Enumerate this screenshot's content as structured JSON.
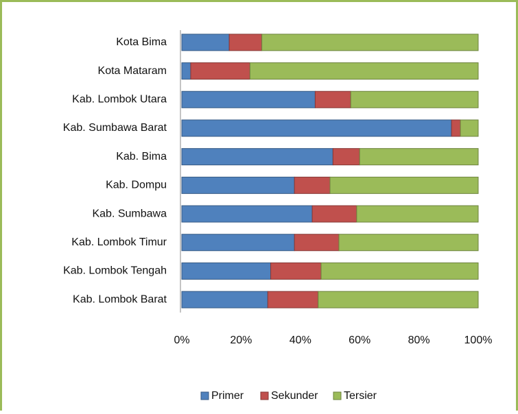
{
  "chart_data": {
    "type": "stacked_barh",
    "categories": [
      "Kota Bima",
      "Kota Mataram",
      "Kab. Lombok Utara",
      "Kab. Sumbawa Barat",
      "Kab. Bima",
      "Kab. Dompu",
      "Kab. Sumbawa",
      "Kab. Lombok Timur",
      "Kab. Lombok Tengah",
      "Kab. Lombok Barat"
    ],
    "series": [
      {
        "name": "Primer",
        "color": "#4f81bd",
        "values": [
          16,
          3,
          45,
          91,
          51,
          38,
          44,
          38,
          30,
          29
        ]
      },
      {
        "name": "Sekunder",
        "color": "#c0504d",
        "values": [
          11,
          20,
          12,
          3,
          9,
          12,
          15,
          15,
          17,
          17
        ]
      },
      {
        "name": "Tersier",
        "color": "#9bbb59",
        "values": [
          73,
          77,
          43,
          6,
          40,
          50,
          41,
          47,
          53,
          54
        ]
      }
    ],
    "xlim": [
      0,
      100
    ],
    "xticks": [
      {
        "value": 0,
        "label": "0%"
      },
      {
        "value": 20,
        "label": "20%"
      },
      {
        "value": 40,
        "label": "40%"
      },
      {
        "value": 60,
        "label": "60%"
      },
      {
        "value": 80,
        "label": "80%"
      },
      {
        "value": 100,
        "label": "100%"
      }
    ],
    "legend": "bottom"
  }
}
